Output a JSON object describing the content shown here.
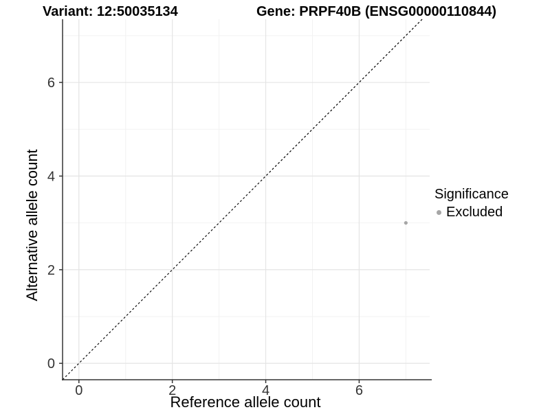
{
  "chart_data": {
    "type": "scatter",
    "title_left": "Variant: 12:50035134",
    "title_right": "Gene: PRPF40B (ENSG00000110844)",
    "xlabel": "Reference allele count",
    "ylabel": "Alternative allele count",
    "xlim": [
      -0.35,
      7.51
    ],
    "ylim": [
      -0.35,
      7.35
    ],
    "x_ticks": {
      "values": [
        0,
        2,
        4,
        6
      ],
      "labels": [
        "0",
        "2",
        "4",
        "6"
      ]
    },
    "y_ticks": {
      "values": [
        0,
        2,
        4,
        6
      ],
      "labels": [
        "0",
        "2",
        "4",
        "6"
      ]
    },
    "x_minor_gridlines": [
      1,
      3,
      5,
      7
    ],
    "y_minor_gridlines": [
      1,
      3,
      5,
      7
    ],
    "grid": true,
    "series": [
      {
        "name": "Excluded",
        "points": [
          [
            7,
            3
          ]
        ],
        "color": "#a6a6a6"
      }
    ],
    "reference_line": {
      "type": "identity y=x",
      "style": "dashed",
      "color": "#000000"
    },
    "legend": {
      "title": "Significance",
      "position": "right",
      "entries": [
        {
          "label": "Excluded",
          "color": "#a6a6a6"
        }
      ]
    }
  },
  "colors": {
    "background": "#ffffff",
    "grid_major": "#e4e4e4",
    "grid_minor": "#f2f2f2",
    "axis_line": "#333333",
    "tick_label": "#333333",
    "text": "#000000",
    "point": "#a6a6a6"
  }
}
